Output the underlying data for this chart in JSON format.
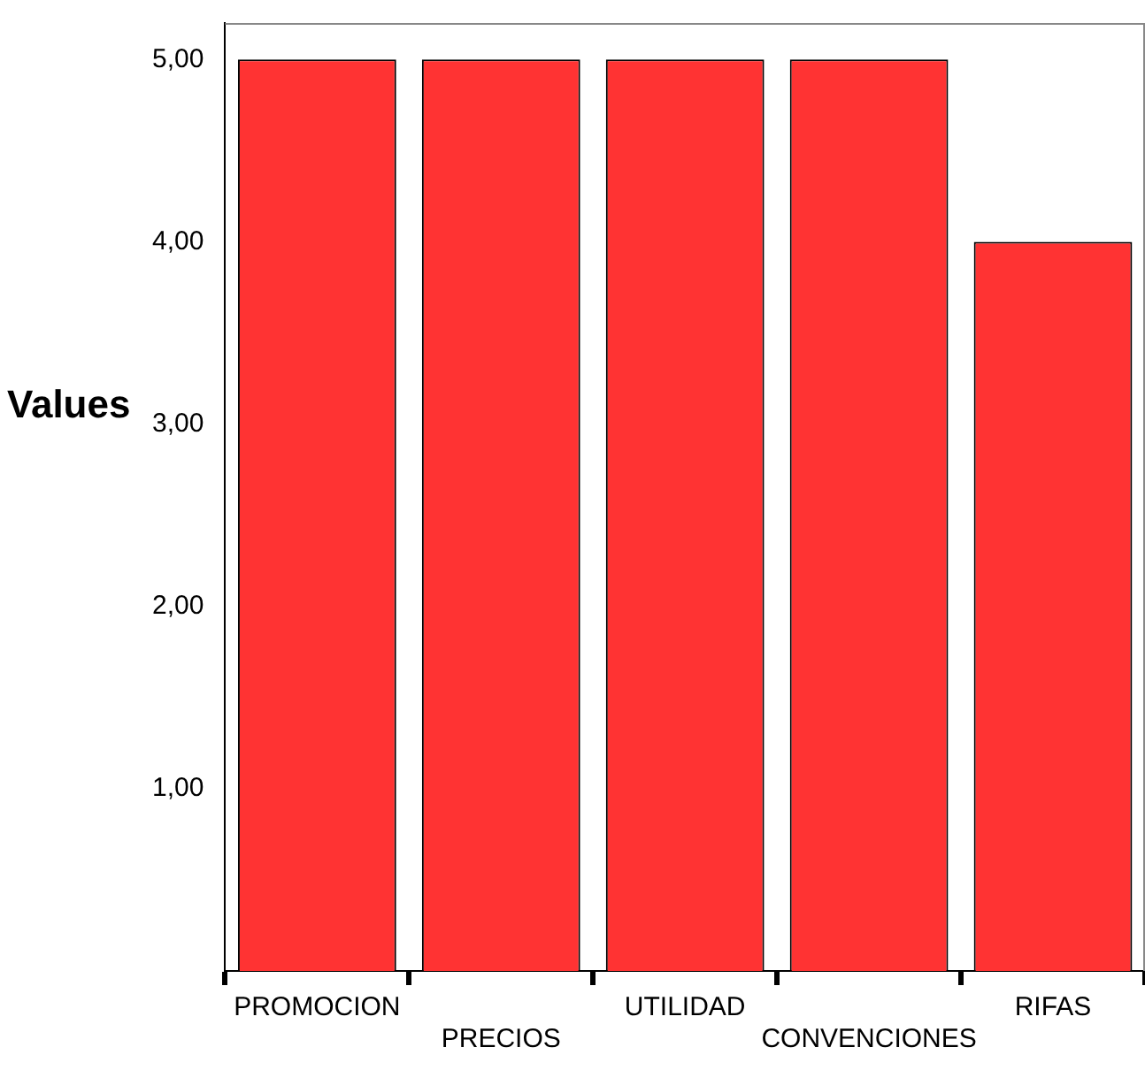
{
  "chart_data": {
    "type": "bar",
    "ylabel": "Values",
    "categories": [
      "PROMOCION",
      "PRECIOS",
      "UTILIDAD",
      "CONVENCIONES",
      "RIFAS"
    ],
    "values": [
      5,
      5,
      5,
      5,
      4
    ],
    "color": "#ff3333",
    "ylim": [
      0,
      5.2
    ],
    "yticks": [
      {
        "value": 1,
        "label": "1,00"
      },
      {
        "value": 2,
        "label": "2,00"
      },
      {
        "value": 3,
        "label": "3,00"
      },
      {
        "value": 4,
        "label": "4,00"
      },
      {
        "value": 5,
        "label": "5,00"
      }
    ],
    "grid": false,
    "legend": false
  }
}
